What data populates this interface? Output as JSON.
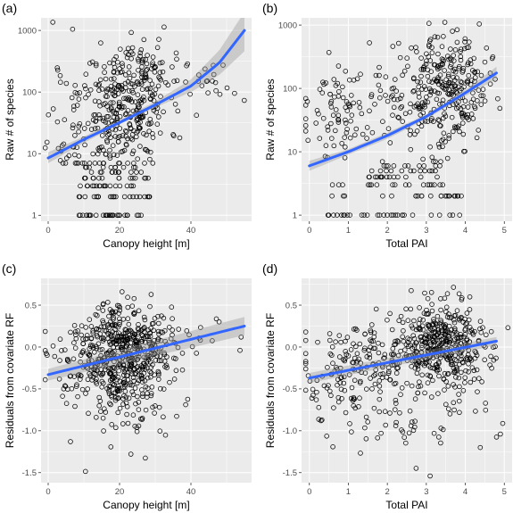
{
  "chart_data": [
    {
      "type": "scatter",
      "panel_label": "(a)",
      "xlabel": "Canopy height [m]",
      "ylabel": "Raw # of species",
      "y_scale": "log10",
      "xlim": [
        -2,
        57
      ],
      "ylim": [
        0.8,
        1600
      ],
      "x_ticks": [
        0,
        20,
        40
      ],
      "x_tick_labels": [
        "0",
        "20",
        "40"
      ],
      "y_ticks": [
        1,
        10,
        100,
        1000
      ],
      "y_tick_labels": [
        "1",
        "10",
        "100",
        "1000"
      ],
      "grid": true,
      "seed": 11,
      "fit": {
        "color": "#3366ff",
        "x": [
          0,
          10,
          20,
          30,
          40,
          48,
          55
        ],
        "y": [
          8.5,
          17,
          32,
          62,
          125,
          300,
          1000
        ],
        "ci_lower": [
          7,
          15,
          30,
          56,
          100,
          190,
          460
        ],
        "ci_upper": [
          10.5,
          19,
          35,
          70,
          160,
          480,
          2000
        ]
      },
      "point_clusters": [
        {
          "n": 250,
          "x_mean": 22,
          "x_sd": 6,
          "y_mean": 55,
          "y_logsd": 0.45
        },
        {
          "n": 90,
          "x_mean": 12,
          "x_sd": 6,
          "y_mean": 30,
          "y_logsd": 0.6
        },
        {
          "n": 60,
          "x_mean": 26,
          "x_sd": 5,
          "y_mean": 250,
          "y_logsd": 0.25
        },
        {
          "n": 25,
          "x_mean": 44,
          "x_sd": 5,
          "y_mean": 150,
          "y_logsd": 0.25
        }
      ],
      "band_points": [
        {
          "y": 1,
          "x_min": 7,
          "x_max": 27,
          "n": 28
        },
        {
          "y": 2,
          "x_min": 8,
          "x_max": 29,
          "n": 22
        },
        {
          "y": 3,
          "x_min": 9,
          "x_max": 29,
          "n": 18
        },
        {
          "y": 4,
          "x_min": 9,
          "x_max": 28,
          "n": 15
        },
        {
          "y": 5,
          "x_min": 10,
          "x_max": 28,
          "n": 12
        },
        {
          "y": 6,
          "x_min": 10,
          "x_max": 27,
          "n": 10
        }
      ]
    },
    {
      "type": "scatter",
      "panel_label": "(b)",
      "xlabel": "Total PAI",
      "ylabel": "Raw # of species",
      "y_scale": "log10",
      "xlim": [
        -0.2,
        5.2
      ],
      "ylim": [
        0.8,
        1300
      ],
      "x_ticks": [
        0,
        1,
        2,
        3,
        4,
        5
      ],
      "x_tick_labels": [
        "0",
        "1",
        "2",
        "3",
        "4",
        "5"
      ],
      "y_ticks": [
        1,
        10,
        100,
        1000
      ],
      "y_tick_labels": [
        "1",
        "10",
        "100",
        "1000"
      ],
      "grid": true,
      "seed": 23,
      "fit": {
        "color": "#3366ff",
        "x": [
          0,
          1,
          2,
          3,
          4,
          4.8
        ],
        "y": [
          6,
          10,
          18,
          36,
          85,
          175
        ],
        "ci_lower": [
          5,
          9,
          16,
          33,
          76,
          140
        ],
        "ci_upper": [
          7.2,
          11,
          20,
          39,
          95,
          220
        ]
      },
      "point_clusters": [
        {
          "n": 220,
          "x_mean": 3.5,
          "x_sd": 0.55,
          "y_mean": 80,
          "y_logsd": 0.4
        },
        {
          "n": 90,
          "x_mean": 2.2,
          "x_sd": 1.0,
          "y_mean": 60,
          "y_logsd": 0.45
        },
        {
          "n": 60,
          "x_mean": 0.7,
          "x_sd": 0.5,
          "y_mean": 40,
          "y_logsd": 0.35
        },
        {
          "n": 40,
          "x_mean": 3.3,
          "x_sd": 0.6,
          "y_mean": 350,
          "y_logsd": 0.2
        }
      ],
      "band_points": [
        {
          "y": 1,
          "x_min": 0.3,
          "x_max": 3.9,
          "n": 30
        },
        {
          "y": 2,
          "x_min": 0.5,
          "x_max": 3.9,
          "n": 22
        },
        {
          "y": 3,
          "x_min": 0.5,
          "x_max": 3.6,
          "n": 18
        },
        {
          "y": 4,
          "x_min": 1.5,
          "x_max": 3.6,
          "n": 14
        },
        {
          "y": 5,
          "x_min": 1.5,
          "x_max": 3.4,
          "n": 12
        },
        {
          "y": 6,
          "x_min": 1.8,
          "x_max": 3.4,
          "n": 10
        }
      ]
    },
    {
      "type": "scatter",
      "panel_label": "(c)",
      "xlabel": "Canopy height [m]",
      "ylabel": "Residuals from covariate RF",
      "y_scale": "linear",
      "xlim": [
        -2,
        57
      ],
      "ylim": [
        -1.62,
        0.82
      ],
      "x_ticks": [
        0,
        20,
        40
      ],
      "x_tick_labels": [
        "0",
        "20",
        "40"
      ],
      "y_ticks": [
        -1.5,
        -1.0,
        -0.5,
        0.0,
        0.5
      ],
      "y_tick_labels": [
        "-1.5",
        "-1.0",
        "-0.5",
        "0.0",
        "0.5"
      ],
      "grid": true,
      "seed": 37,
      "fit": {
        "color": "#3366ff",
        "x": [
          0,
          55
        ],
        "y": [
          -0.33,
          0.25
        ],
        "ci_lower": [
          -0.4,
          0.14
        ],
        "ci_upper": [
          -0.26,
          0.36
        ]
      },
      "point_clusters": [
        {
          "n": 450,
          "x_mean": 22,
          "x_sd": 6,
          "y_mean": -0.02,
          "y_sd": 0.28
        },
        {
          "n": 130,
          "x_mean": 14,
          "x_sd": 7,
          "y_mean": -0.25,
          "y_sd": 0.3
        },
        {
          "n": 50,
          "x_mean": 24,
          "x_sd": 7,
          "y_mean": -0.75,
          "y_sd": 0.3
        },
        {
          "n": 15,
          "x_mean": 44,
          "x_sd": 6,
          "y_mean": 0.1,
          "y_sd": 0.15
        }
      ],
      "band_points": []
    },
    {
      "type": "scatter",
      "panel_label": "(d)",
      "xlabel": "Total PAI",
      "ylabel": "Residuals from covariate RF",
      "y_scale": "linear",
      "xlim": [
        -0.2,
        5.2
      ],
      "ylim": [
        -1.62,
        0.82
      ],
      "x_ticks": [
        0,
        1,
        2,
        3,
        4,
        5
      ],
      "x_tick_labels": [
        "0",
        "1",
        "2",
        "3",
        "4",
        "5"
      ],
      "y_ticks": [
        -1.5,
        -1.0,
        -0.5,
        0.0,
        0.5
      ],
      "y_tick_labels": [
        "-1.5",
        "-1.0",
        "-0.5",
        "0.0",
        "0.5"
      ],
      "grid": true,
      "seed": 53,
      "fit": {
        "color": "#3366ff",
        "x": [
          0,
          4.8
        ],
        "y": [
          -0.37,
          0.07
        ],
        "ci_lower": [
          -0.43,
          0.02
        ],
        "ci_upper": [
          -0.31,
          0.12
        ]
      },
      "point_clusters": [
        {
          "n": 380,
          "x_mean": 3.5,
          "x_sd": 0.6,
          "y_mean": 0.0,
          "y_sd": 0.26
        },
        {
          "n": 160,
          "x_mean": 2.0,
          "x_sd": 1.0,
          "y_mean": -0.15,
          "y_sd": 0.3
        },
        {
          "n": 70,
          "x_mean": 0.8,
          "x_sd": 0.5,
          "y_mean": -0.35,
          "y_sd": 0.3
        },
        {
          "n": 45,
          "x_mean": 2.8,
          "x_sd": 1.0,
          "y_mean": -0.9,
          "y_sd": 0.3
        }
      ],
      "band_points": []
    }
  ]
}
